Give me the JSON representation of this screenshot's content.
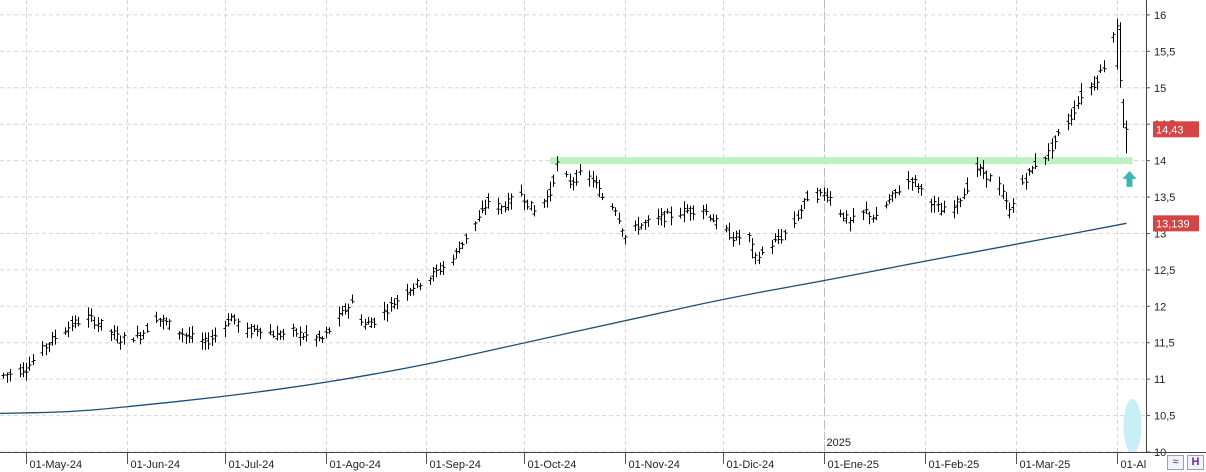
{
  "chart_data": {
    "type": "ohlc",
    "title": "",
    "xlabel": "",
    "ylabel": "",
    "ylim": [
      10,
      16.15
    ],
    "y_ticks": [
      "10",
      "10,5",
      "11",
      "11,5",
      "12",
      "12,5",
      "13",
      "13,5",
      "14",
      "14,5",
      "15",
      "15,5",
      "16"
    ],
    "x_ticks": [
      {
        "date": "2024-05-01",
        "label": "01-May-24"
      },
      {
        "date": "2024-06-01",
        "label": "01-Jun-24"
      },
      {
        "date": "2024-07-01",
        "label": "01-Jul-24"
      },
      {
        "date": "2024-08-01",
        "label": "01-Ago-24"
      },
      {
        "date": "2024-09-01",
        "label": "01-Sep-24"
      },
      {
        "date": "2024-10-01",
        "label": "01-Oct-24"
      },
      {
        "date": "2024-11-01",
        "label": "01-Nov-24"
      },
      {
        "date": "2024-12-01",
        "label": "01-Dic-24"
      },
      {
        "date": "2025-01-01",
        "label": "01-Ene-25"
      },
      {
        "date": "2025-02-01",
        "label": "01-Feb-25"
      },
      {
        "date": "2025-03-01",
        "label": "01-Mar-25"
      },
      {
        "date": "2025-04-01",
        "label": "01-Al"
      }
    ],
    "year_marker": {
      "date": "2025-01-01",
      "label": "2025"
    },
    "x_start": "2024-04-23",
    "x_end": "2025-04-10",
    "price_path": [
      [
        "2024-04-24",
        11.05
      ],
      [
        "2024-05-01",
        11.15
      ],
      [
        "2024-05-08",
        11.5
      ],
      [
        "2024-05-15",
        11.75
      ],
      [
        "2024-05-20",
        11.85
      ],
      [
        "2024-05-24",
        11.75
      ],
      [
        "2024-05-30",
        11.55
      ],
      [
        "2024-06-05",
        11.6
      ],
      [
        "2024-06-10",
        11.85
      ],
      [
        "2024-06-14",
        11.75
      ],
      [
        "2024-06-19",
        11.6
      ],
      [
        "2024-06-25",
        11.5
      ],
      [
        "2024-06-28",
        11.6
      ],
      [
        "2024-07-03",
        11.85
      ],
      [
        "2024-07-08",
        11.65
      ],
      [
        "2024-07-12",
        11.7
      ],
      [
        "2024-07-17",
        11.6
      ],
      [
        "2024-07-22",
        11.65
      ],
      [
        "2024-07-25",
        11.6
      ],
      [
        "2024-07-31",
        11.55
      ],
      [
        "2024-08-05",
        11.85
      ],
      [
        "2024-08-09",
        12.05
      ],
      [
        "2024-08-13",
        11.75
      ],
      [
        "2024-08-16",
        11.8
      ],
      [
        "2024-08-22",
        12.05
      ],
      [
        "2024-08-27",
        12.25
      ],
      [
        "2024-09-02",
        12.4
      ],
      [
        "2024-09-09",
        12.65
      ],
      [
        "2024-09-13",
        12.95
      ],
      [
        "2024-09-17",
        13.2
      ],
      [
        "2024-09-20",
        13.45
      ],
      [
        "2024-09-24",
        13.35
      ],
      [
        "2024-09-30",
        13.55
      ],
      [
        "2024-10-04",
        13.3
      ],
      [
        "2024-10-09",
        13.55
      ],
      [
        "2024-10-11",
        13.95
      ],
      [
        "2024-10-15",
        13.7
      ],
      [
        "2024-10-18",
        13.8
      ],
      [
        "2024-10-22",
        13.75
      ],
      [
        "2024-10-25",
        13.5
      ],
      [
        "2024-10-29",
        13.35
      ],
      [
        "2024-11-01",
        12.95
      ],
      [
        "2024-11-05",
        13.1
      ],
      [
        "2024-11-11",
        13.2
      ],
      [
        "2024-11-15",
        13.25
      ],
      [
        "2024-11-19",
        13.3
      ],
      [
        "2024-11-25",
        13.35
      ],
      [
        "2024-11-29",
        13.15
      ],
      [
        "2024-12-04",
        12.95
      ],
      [
        "2024-12-09",
        12.95
      ],
      [
        "2024-12-11",
        12.65
      ],
      [
        "2024-12-16",
        12.85
      ],
      [
        "2024-12-19",
        12.95
      ],
      [
        "2024-12-23",
        13.15
      ],
      [
        "2024-12-27",
        13.5
      ],
      [
        "2025-01-02",
        13.55
      ],
      [
        "2025-01-06",
        13.3
      ],
      [
        "2025-01-09",
        13.15
      ],
      [
        "2025-01-14",
        13.3
      ],
      [
        "2025-01-17",
        13.2
      ],
      [
        "2025-01-21",
        13.45
      ],
      [
        "2025-01-24",
        13.6
      ],
      [
        "2025-01-28",
        13.75
      ],
      [
        "2025-02-03",
        13.45
      ],
      [
        "2025-02-06",
        13.3
      ],
      [
        "2025-02-10",
        13.35
      ],
      [
        "2025-02-13",
        13.55
      ],
      [
        "2025-02-17",
        13.9
      ],
      [
        "2025-02-20",
        13.8
      ],
      [
        "2025-02-24",
        13.65
      ],
      [
        "2025-02-27",
        13.3
      ],
      [
        "2025-03-03",
        13.7
      ],
      [
        "2025-03-07",
        13.95
      ],
      [
        "2025-03-11",
        14.1
      ],
      [
        "2025-03-14",
        14.35
      ],
      [
        "2025-03-18",
        14.6
      ],
      [
        "2025-03-21",
        14.9
      ],
      [
        "2025-03-25",
        15.05
      ],
      [
        "2025-03-28",
        15.3
      ],
      [
        "2025-03-31",
        15.75
      ],
      [
        "2025-04-02",
        15.2
      ],
      [
        "2025-04-03",
        14.95
      ],
      [
        "2025-04-04",
        14.43
      ]
    ],
    "last_bars": [
      {
        "date": "2025-04-01",
        "open": 15.3,
        "high": 15.95,
        "low": 15.25,
        "close": 15.85
      },
      {
        "date": "2025-04-02",
        "open": 15.8,
        "high": 15.9,
        "low": 15.0,
        "close": 15.1
      },
      {
        "date": "2025-04-03",
        "open": 14.8,
        "high": 14.85,
        "low": 14.45,
        "close": 14.5
      },
      {
        "date": "2025-04-04",
        "open": 14.45,
        "high": 14.55,
        "low": 14.1,
        "close": 14.43
      }
    ],
    "moving_average": {
      "last_value": 13.139,
      "points": [
        [
          "2024-04-23",
          10.53
        ],
        [
          "2024-05-15",
          10.55
        ],
        [
          "2024-06-01",
          10.62
        ],
        [
          "2024-07-01",
          10.76
        ],
        [
          "2024-08-01",
          10.95
        ],
        [
          "2024-09-01",
          11.2
        ],
        [
          "2024-10-01",
          11.5
        ],
        [
          "2024-11-01",
          11.8
        ],
        [
          "2024-12-01",
          12.1
        ],
        [
          "2025-01-01",
          12.35
        ],
        [
          "2025-02-01",
          12.62
        ],
        [
          "2025-03-01",
          12.85
        ],
        [
          "2025-04-04",
          13.139
        ]
      ]
    },
    "resistance": {
      "level": 14.0,
      "from": "2024-10-09",
      "to": "2025-04-04"
    },
    "last_price": {
      "value": 14.43,
      "label": "14,43"
    },
    "ma_price": {
      "value": 13.139,
      "label": "13,139"
    },
    "breakout_arrow": {
      "date": "2025-04-04",
      "price": 13.75
    },
    "volume_oval": {
      "date": "2025-04-04"
    },
    "colors": {
      "bars": "#000000",
      "moving_average": "#1b4d78",
      "resistance": "#bff0bf",
      "last_price_tag": "#d64545",
      "arrow": "#3cb6b6",
      "volume_oval": "#c6f0f6",
      "grid": "#d6d6d6"
    },
    "grid": true
  },
  "ui": {
    "zoom_icon": "≈",
    "save_icon": "H"
  }
}
